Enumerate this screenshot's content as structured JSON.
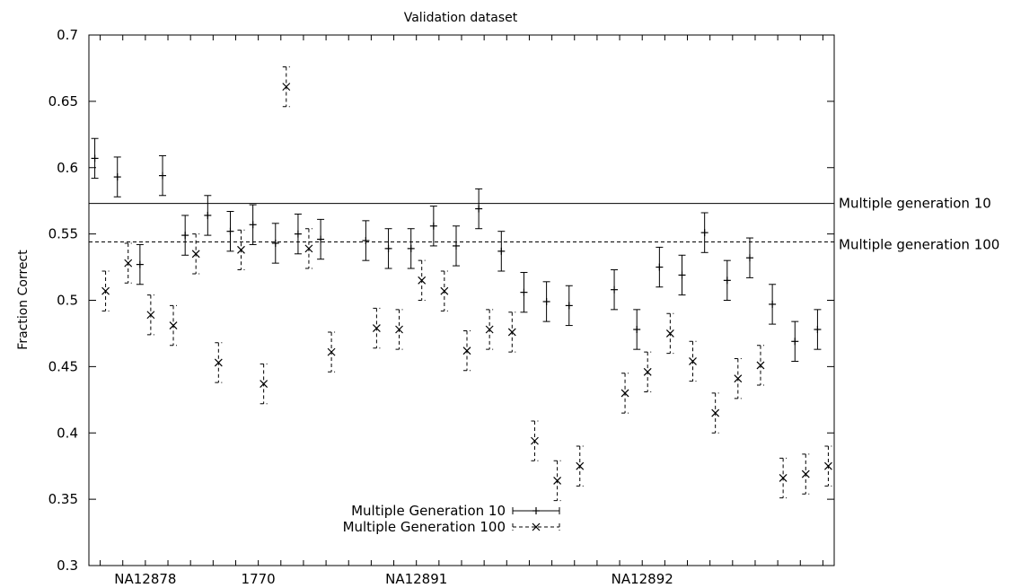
{
  "chart_data": {
    "type": "scatter",
    "title": "Validation dataset",
    "xlabel": "",
    "ylabel": "Fraction Correct",
    "ylim": [
      0.3,
      0.7
    ],
    "yticks": [
      0.3,
      0.35,
      0.4,
      0.45,
      0.5,
      0.55,
      0.6,
      0.65,
      0.7
    ],
    "ytick_labels": [
      "0.3",
      "0.35",
      "0.4",
      "0.45",
      "0.5",
      "0.55",
      "0.6",
      "0.65",
      "0.7"
    ],
    "xlim": [
      0.5,
      33.5
    ],
    "xticks": [
      1,
      2,
      3,
      4,
      5,
      6,
      7,
      8,
      9,
      10,
      11,
      12,
      13,
      14,
      15,
      16,
      17,
      18,
      19,
      20,
      21,
      22,
      23,
      24,
      25,
      26,
      27,
      28,
      29,
      30,
      31,
      32,
      33
    ],
    "x_category_labels": [
      {
        "x": 3,
        "label": "NA12878"
      },
      {
        "x": 8,
        "label": "1770"
      },
      {
        "x": 15,
        "label": "NA12891"
      },
      {
        "x": 25,
        "label": "NA12892"
      }
    ],
    "grid": false,
    "legend_position": "bottom-center",
    "series": [
      {
        "name": "Multiple Generation 10",
        "marker": "plus",
        "line": "solid",
        "points": [
          {
            "x": 1,
            "y": 0.607,
            "err": 0.015
          },
          {
            "x": 2,
            "y": 0.593,
            "err": 0.015
          },
          {
            "x": 3,
            "y": 0.527,
            "err": 0.015
          },
          {
            "x": 4,
            "y": 0.594,
            "err": 0.015
          },
          {
            "x": 5,
            "y": 0.549,
            "err": 0.015
          },
          {
            "x": 6,
            "y": 0.564,
            "err": 0.015
          },
          {
            "x": 7,
            "y": 0.552,
            "err": 0.015
          },
          {
            "x": 8,
            "y": 0.557,
            "err": 0.015
          },
          {
            "x": 9,
            "y": 0.543,
            "err": 0.015
          },
          {
            "x": 10,
            "y": 0.55,
            "err": 0.015
          },
          {
            "x": 11,
            "y": 0.546,
            "err": 0.015
          },
          {
            "x": 13,
            "y": 0.545,
            "err": 0.015
          },
          {
            "x": 14,
            "y": 0.539,
            "err": 0.015
          },
          {
            "x": 15,
            "y": 0.539,
            "err": 0.015
          },
          {
            "x": 16,
            "y": 0.556,
            "err": 0.015
          },
          {
            "x": 17,
            "y": 0.541,
            "err": 0.015
          },
          {
            "x": 18,
            "y": 0.569,
            "err": 0.015
          },
          {
            "x": 19,
            "y": 0.537,
            "err": 0.015
          },
          {
            "x": 20,
            "y": 0.506,
            "err": 0.015
          },
          {
            "x": 21,
            "y": 0.499,
            "err": 0.015
          },
          {
            "x": 22,
            "y": 0.496,
            "err": 0.015
          },
          {
            "x": 24,
            "y": 0.508,
            "err": 0.015
          },
          {
            "x": 25,
            "y": 0.478,
            "err": 0.015
          },
          {
            "x": 26,
            "y": 0.525,
            "err": 0.015
          },
          {
            "x": 27,
            "y": 0.519,
            "err": 0.015
          },
          {
            "x": 28,
            "y": 0.551,
            "err": 0.015
          },
          {
            "x": 29,
            "y": 0.515,
            "err": 0.015
          },
          {
            "x": 30,
            "y": 0.532,
            "err": 0.015
          },
          {
            "x": 31,
            "y": 0.497,
            "err": 0.015
          },
          {
            "x": 32,
            "y": 0.469,
            "err": 0.015
          },
          {
            "x": 33,
            "y": 0.478,
            "err": 0.015
          }
        ]
      },
      {
        "name": "Multiple Generation 100",
        "marker": "cross",
        "line": "dashed",
        "points": [
          {
            "x": 1,
            "y": 0.507,
            "err": 0.015
          },
          {
            "x": 2,
            "y": 0.528,
            "err": 0.015
          },
          {
            "x": 3,
            "y": 0.489,
            "err": 0.015
          },
          {
            "x": 4,
            "y": 0.481,
            "err": 0.015
          },
          {
            "x": 5,
            "y": 0.535,
            "err": 0.015
          },
          {
            "x": 6,
            "y": 0.453,
            "err": 0.015
          },
          {
            "x": 7,
            "y": 0.538,
            "err": 0.015
          },
          {
            "x": 8,
            "y": 0.437,
            "err": 0.015
          },
          {
            "x": 9,
            "y": 0.661,
            "err": 0.015
          },
          {
            "x": 10,
            "y": 0.539,
            "err": 0.015
          },
          {
            "x": 11,
            "y": 0.461,
            "err": 0.015
          },
          {
            "x": 13,
            "y": 0.479,
            "err": 0.015
          },
          {
            "x": 14,
            "y": 0.478,
            "err": 0.015
          },
          {
            "x": 15,
            "y": 0.515,
            "err": 0.015
          },
          {
            "x": 16,
            "y": 0.507,
            "err": 0.015
          },
          {
            "x": 17,
            "y": 0.462,
            "err": 0.015
          },
          {
            "x": 18,
            "y": 0.478,
            "err": 0.015
          },
          {
            "x": 19,
            "y": 0.476,
            "err": 0.015
          },
          {
            "x": 20,
            "y": 0.394,
            "err": 0.015
          },
          {
            "x": 21,
            "y": 0.364,
            "err": 0.015
          },
          {
            "x": 22,
            "y": 0.375,
            "err": 0.015
          },
          {
            "x": 24,
            "y": 0.43,
            "err": 0.015
          },
          {
            "x": 25,
            "y": 0.446,
            "err": 0.015
          },
          {
            "x": 26,
            "y": 0.475,
            "err": 0.015
          },
          {
            "x": 27,
            "y": 0.454,
            "err": 0.015
          },
          {
            "x": 28,
            "y": 0.415,
            "err": 0.015
          },
          {
            "x": 29,
            "y": 0.441,
            "err": 0.015
          },
          {
            "x": 30,
            "y": 0.451,
            "err": 0.015
          },
          {
            "x": 31,
            "y": 0.366,
            "err": 0.015
          },
          {
            "x": 32,
            "y": 0.369,
            "err": 0.015
          },
          {
            "x": 33,
            "y": 0.375,
            "err": 0.015
          }
        ]
      }
    ],
    "reference_lines": [
      {
        "label": "Multiple generation  10",
        "y": 0.573,
        "line": "solid"
      },
      {
        "label": "Multiple generation 100",
        "y": 0.544,
        "line": "dashed"
      }
    ]
  }
}
